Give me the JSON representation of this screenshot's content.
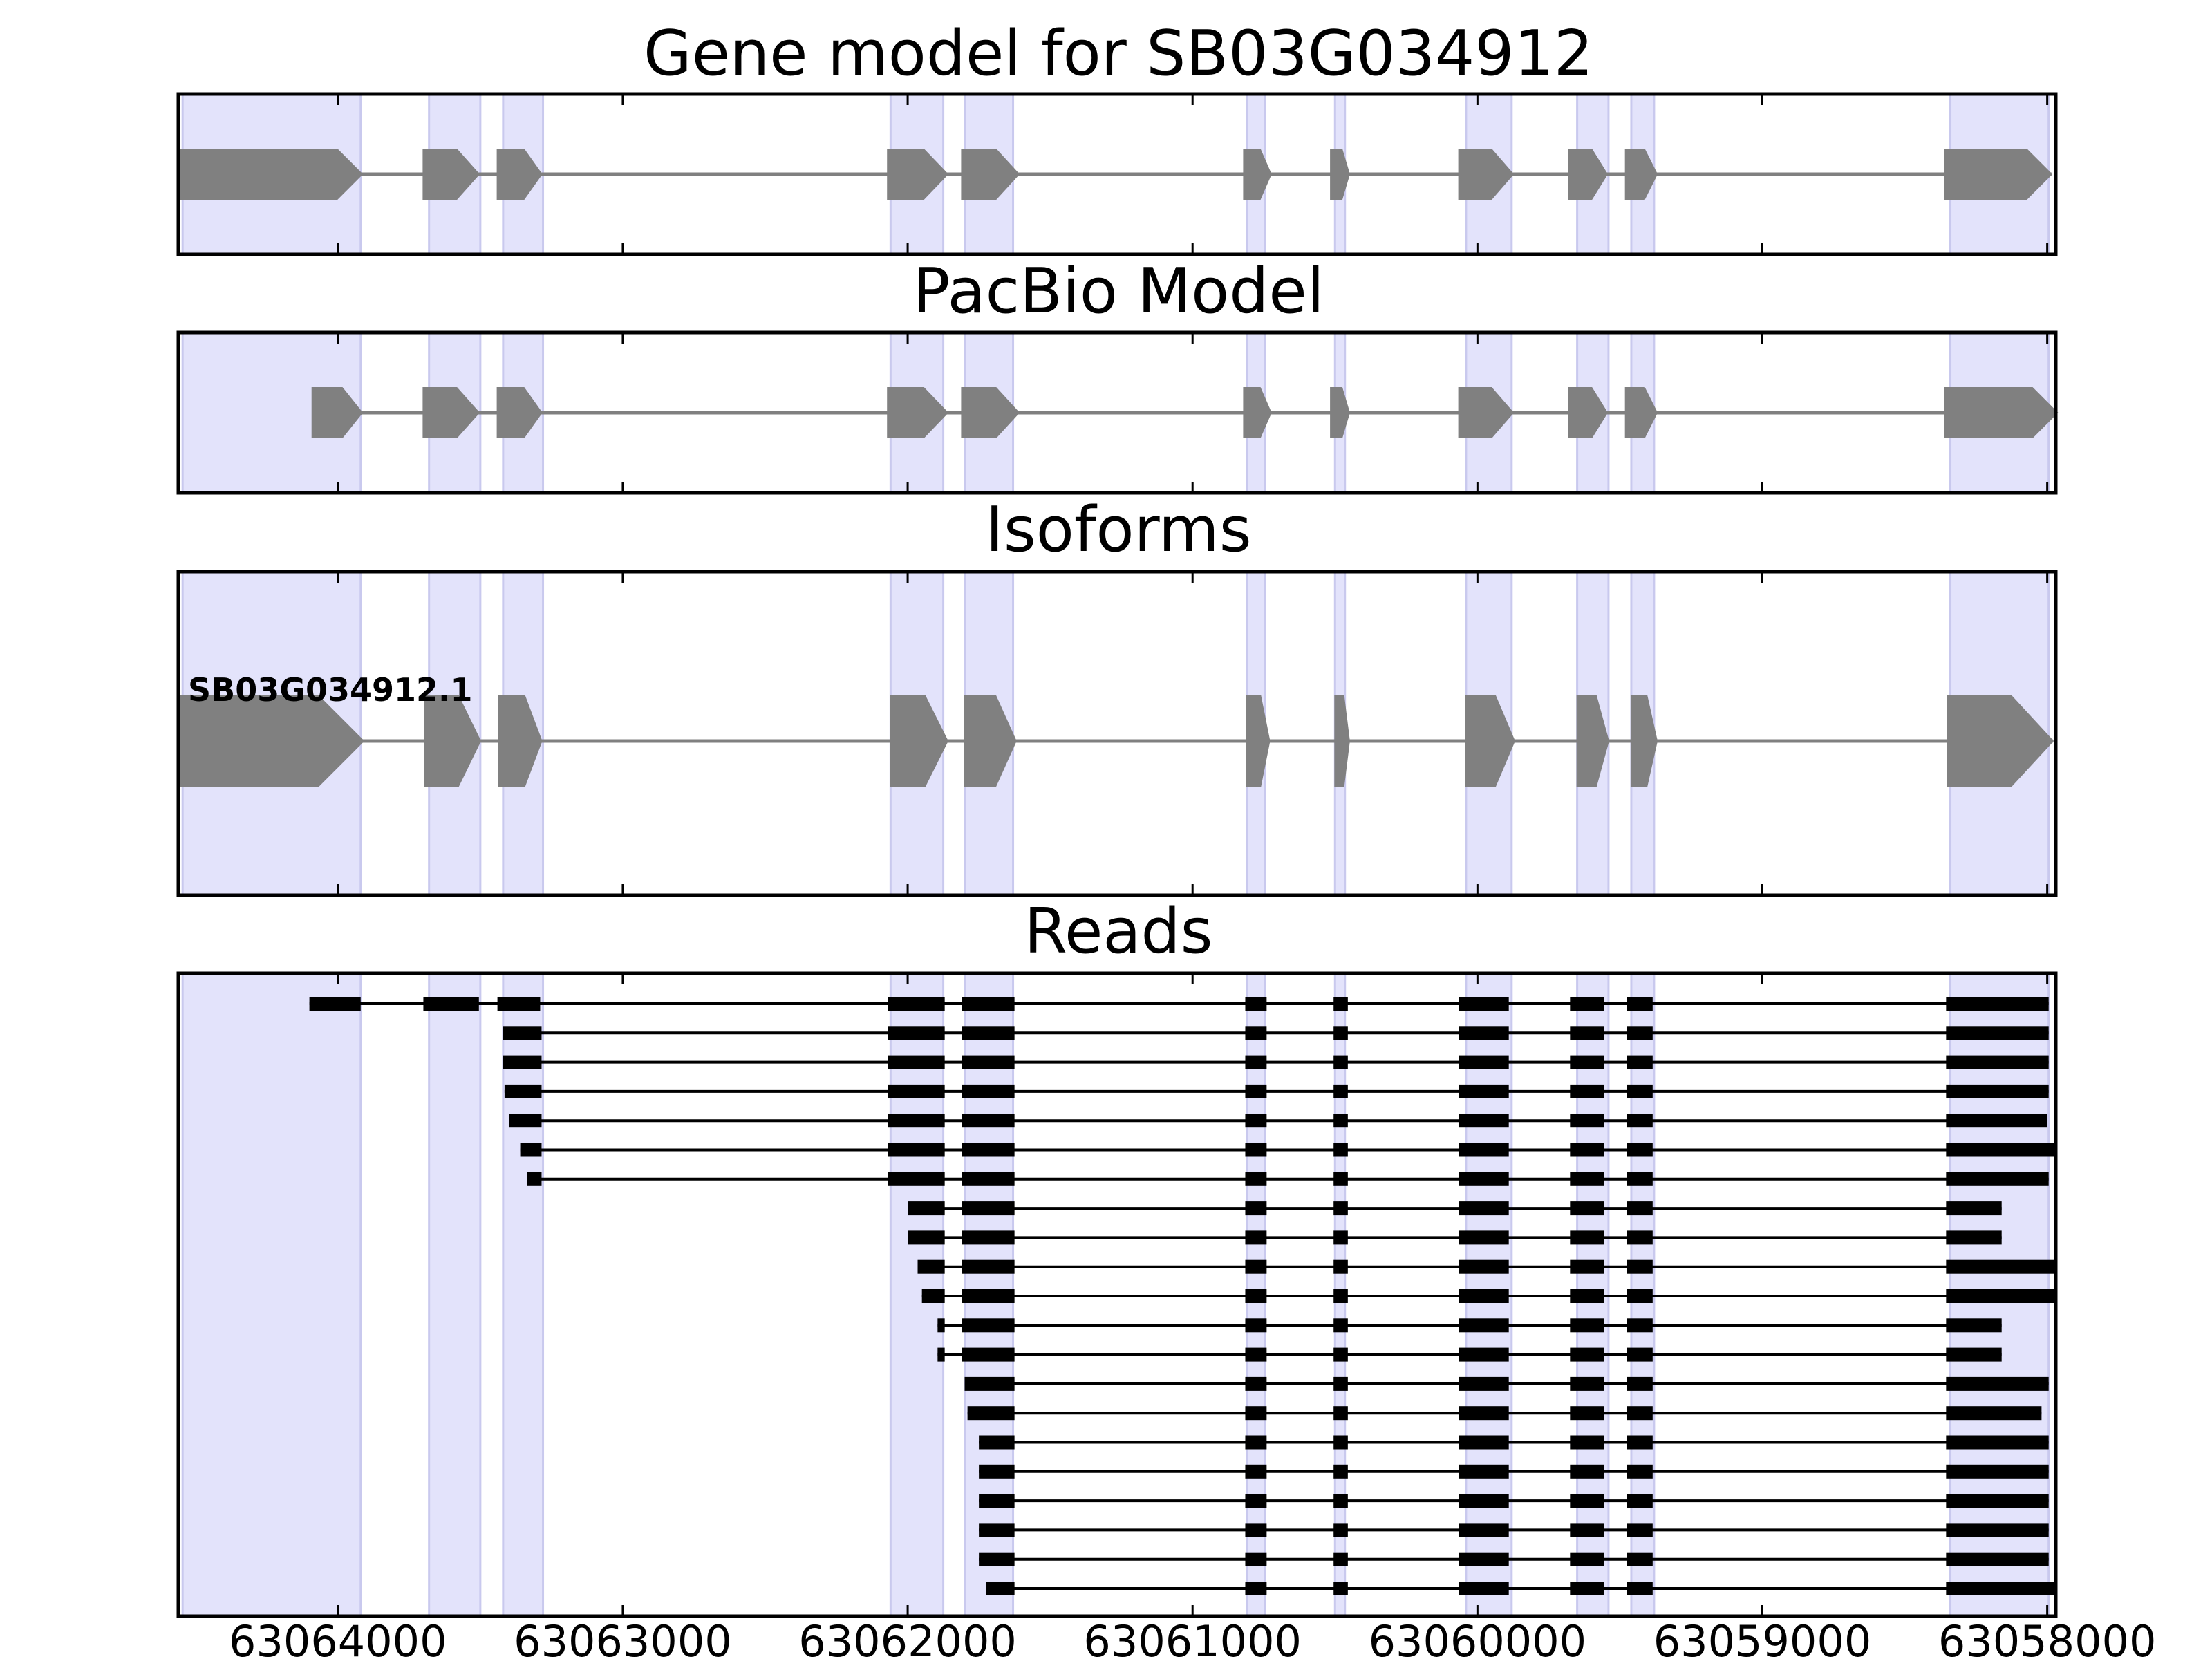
{
  "titles": {
    "gene_model": "Gene model for SB03G034912",
    "pacbio_model": "PacBio Model",
    "isoforms": "Isoforms",
    "reads": "Reads"
  },
  "isoform_label": "SB03G034912.1",
  "colors": {
    "exon_fill": "#808080",
    "intron_line": "#808080",
    "highlight": "#e3e3fb",
    "highlight_edge": "#c9c9ee",
    "read_fill": "#000000",
    "frame": "#000000"
  },
  "chart_data": {
    "type": "gene_model",
    "xlabel": "",
    "ylabel": "",
    "xlim": [
      63064560,
      63057970
    ],
    "x_axis_reversed": true,
    "x_ticks": [
      {
        "value": 63064000,
        "label": "63064000"
      },
      {
        "value": 63063000,
        "label": "63063000"
      },
      {
        "value": 63062000,
        "label": "63062000"
      },
      {
        "value": 63061000,
        "label": "63061000"
      },
      {
        "value": 63060000,
        "label": "63060000"
      },
      {
        "value": 63059000,
        "label": "63059000"
      },
      {
        "value": 63058000,
        "label": "63058000"
      }
    ],
    "highlight_regions": [
      [
        63064545,
        63063920
      ],
      [
        63063680,
        63063500
      ],
      [
        63063420,
        63063280
      ],
      [
        63062060,
        63061875
      ],
      [
        63061800,
        63061630
      ],
      [
        63060810,
        63060745
      ],
      [
        63060500,
        63060465
      ],
      [
        63060040,
        63059880
      ],
      [
        63059650,
        63059540
      ],
      [
        63059460,
        63059380
      ],
      [
        63058340,
        63057995
      ]
    ],
    "gene_model_exons": [
      [
        63064560,
        63063915
      ],
      [
        63063700,
        63063505
      ],
      [
        63063440,
        63063285
      ],
      [
        63062070,
        63061860
      ],
      [
        63061810,
        63061610
      ],
      [
        63060820,
        63060725
      ],
      [
        63060515,
        63060450
      ],
      [
        63060065,
        63059875
      ],
      [
        63059680,
        63059545
      ],
      [
        63059480,
        63059370
      ],
      [
        63058360,
        63057985
      ]
    ],
    "pacbio_model_exons": [
      [
        63064090,
        63063915
      ],
      [
        63063700,
        63063505
      ],
      [
        63063440,
        63063285
      ],
      [
        63062070,
        63061860
      ],
      [
        63061810,
        63061610
      ],
      [
        63060820,
        63060725
      ],
      [
        63060515,
        63060450
      ],
      [
        63060065,
        63059875
      ],
      [
        63059680,
        63059545
      ],
      [
        63059480,
        63059370
      ],
      [
        63058360,
        63057965
      ]
    ],
    "isoforms": [
      {
        "name": "SB03G034912.1",
        "exons": [
          [
            63064560,
            63063910
          ],
          [
            63063695,
            63063500
          ],
          [
            63063435,
            63063285
          ],
          [
            63062060,
            63061860
          ],
          [
            63061800,
            63061620
          ],
          [
            63060810,
            63060730
          ],
          [
            63060500,
            63060450
          ],
          [
            63060040,
            63059870
          ],
          [
            63059650,
            63059540
          ],
          [
            63059460,
            63059370
          ],
          [
            63058350,
            63057980
          ]
        ]
      }
    ],
    "reads": [
      [
        [
          63064100,
          63063920
        ],
        [
          63063700,
          63063505
        ],
        [
          63063440,
          63063290
        ],
        [
          63062070,
          63061870
        ],
        [
          63061810,
          63061625
        ],
        [
          63060815,
          63060740
        ],
        [
          63060505,
          63060455
        ],
        [
          63060065,
          63059890
        ],
        [
          63059675,
          63059555
        ],
        [
          63059475,
          63059385
        ],
        [
          63058355,
          63057995
        ]
      ],
      [
        [
          63063420,
          63063285
        ],
        [
          63062070,
          63061870
        ],
        [
          63061810,
          63061625
        ],
        [
          63060815,
          63060740
        ],
        [
          63060505,
          63060455
        ],
        [
          63060065,
          63059890
        ],
        [
          63059675,
          63059555
        ],
        [
          63059475,
          63059385
        ],
        [
          63058355,
          63057995
        ]
      ],
      [
        [
          63063420,
          63063285
        ],
        [
          63062070,
          63061870
        ],
        [
          63061810,
          63061625
        ],
        [
          63060815,
          63060740
        ],
        [
          63060505,
          63060455
        ],
        [
          63060065,
          63059890
        ],
        [
          63059675,
          63059555
        ],
        [
          63059475,
          63059385
        ],
        [
          63058355,
          63057995
        ]
      ],
      [
        [
          63063415,
          63063285
        ],
        [
          63062070,
          63061870
        ],
        [
          63061810,
          63061625
        ],
        [
          63060815,
          63060740
        ],
        [
          63060505,
          63060455
        ],
        [
          63060065,
          63059890
        ],
        [
          63059675,
          63059555
        ],
        [
          63059475,
          63059385
        ],
        [
          63058355,
          63057995
        ]
      ],
      [
        [
          63063400,
          63063285
        ],
        [
          63062070,
          63061870
        ],
        [
          63061810,
          63061625
        ],
        [
          63060815,
          63060740
        ],
        [
          63060505,
          63060455
        ],
        [
          63060065,
          63059890
        ],
        [
          63059675,
          63059555
        ],
        [
          63059475,
          63059385
        ],
        [
          63058355,
          63058000
        ]
      ],
      [
        [
          63063360,
          63063285
        ],
        [
          63062070,
          63061870
        ],
        [
          63061810,
          63061625
        ],
        [
          63060815,
          63060740
        ],
        [
          63060505,
          63060455
        ],
        [
          63060065,
          63059890
        ],
        [
          63059675,
          63059555
        ],
        [
          63059475,
          63059385
        ],
        [
          63058355,
          63057975
        ]
      ],
      [
        [
          63063335,
          63063285
        ],
        [
          63062070,
          63061870
        ],
        [
          63061810,
          63061625
        ],
        [
          63060815,
          63060740
        ],
        [
          63060505,
          63060455
        ],
        [
          63060065,
          63059890
        ],
        [
          63059675,
          63059555
        ],
        [
          63059475,
          63059385
        ],
        [
          63058355,
          63057995
        ]
      ],
      [
        [
          63062000,
          63061870
        ],
        [
          63061810,
          63061625
        ],
        [
          63060815,
          63060740
        ],
        [
          63060505,
          63060455
        ],
        [
          63060065,
          63059890
        ],
        [
          63059675,
          63059555
        ],
        [
          63059475,
          63059385
        ],
        [
          63058355,
          63058160
        ]
      ],
      [
        [
          63062000,
          63061870
        ],
        [
          63061810,
          63061625
        ],
        [
          63060815,
          63060740
        ],
        [
          63060505,
          63060455
        ],
        [
          63060065,
          63059890
        ],
        [
          63059675,
          63059555
        ],
        [
          63059475,
          63059385
        ],
        [
          63058355,
          63058160
        ]
      ],
      [
        [
          63061965,
          63061870
        ],
        [
          63061810,
          63061625
        ],
        [
          63060815,
          63060740
        ],
        [
          63060505,
          63060455
        ],
        [
          63060065,
          63059890
        ],
        [
          63059675,
          63059555
        ],
        [
          63059475,
          63059385
        ],
        [
          63058355,
          63057975
        ]
      ],
      [
        [
          63061950,
          63061870
        ],
        [
          63061810,
          63061625
        ],
        [
          63060815,
          63060740
        ],
        [
          63060505,
          63060455
        ],
        [
          63060065,
          63059890
        ],
        [
          63059675,
          63059555
        ],
        [
          63059475,
          63059385
        ],
        [
          63058355,
          63057975
        ]
      ],
      [
        [
          63061895,
          63061870
        ],
        [
          63061810,
          63061625
        ],
        [
          63060815,
          63060740
        ],
        [
          63060505,
          63060455
        ],
        [
          63060065,
          63059890
        ],
        [
          63059675,
          63059555
        ],
        [
          63059475,
          63059385
        ],
        [
          63058355,
          63058160
        ]
      ],
      [
        [
          63061895,
          63061870
        ],
        [
          63061810,
          63061625
        ],
        [
          63060815,
          63060740
        ],
        [
          63060505,
          63060455
        ],
        [
          63060065,
          63059890
        ],
        [
          63059675,
          63059555
        ],
        [
          63059475,
          63059385
        ],
        [
          63058355,
          63058160
        ]
      ],
      [
        [
          63061800,
          63061625
        ],
        [
          63060815,
          63060740
        ],
        [
          63060505,
          63060455
        ],
        [
          63060065,
          63059890
        ],
        [
          63059675,
          63059555
        ],
        [
          63059475,
          63059385
        ],
        [
          63058355,
          63057995
        ]
      ],
      [
        [
          63061790,
          63061625
        ],
        [
          63060815,
          63060740
        ],
        [
          63060505,
          63060455
        ],
        [
          63060065,
          63059890
        ],
        [
          63059675,
          63059555
        ],
        [
          63059475,
          63059385
        ],
        [
          63058355,
          63058020
        ]
      ],
      [
        [
          63061750,
          63061625
        ],
        [
          63060815,
          63060740
        ],
        [
          63060505,
          63060455
        ],
        [
          63060065,
          63059890
        ],
        [
          63059675,
          63059555
        ],
        [
          63059475,
          63059385
        ],
        [
          63058355,
          63057995
        ]
      ],
      [
        [
          63061750,
          63061625
        ],
        [
          63060815,
          63060740
        ],
        [
          63060505,
          63060455
        ],
        [
          63060065,
          63059890
        ],
        [
          63059675,
          63059555
        ],
        [
          63059475,
          63059385
        ],
        [
          63058355,
          63057995
        ]
      ],
      [
        [
          63061750,
          63061625
        ],
        [
          63060815,
          63060740
        ],
        [
          63060505,
          63060455
        ],
        [
          63060065,
          63059890
        ],
        [
          63059675,
          63059555
        ],
        [
          63059475,
          63059385
        ],
        [
          63058355,
          63057995
        ]
      ],
      [
        [
          63061750,
          63061625
        ],
        [
          63060815,
          63060740
        ],
        [
          63060505,
          63060455
        ],
        [
          63060065,
          63059890
        ],
        [
          63059675,
          63059555
        ],
        [
          63059475,
          63059385
        ],
        [
          63058355,
          63057995
        ]
      ],
      [
        [
          63061750,
          63061625
        ],
        [
          63060815,
          63060740
        ],
        [
          63060505,
          63060455
        ],
        [
          63060065,
          63059890
        ],
        [
          63059675,
          63059555
        ],
        [
          63059475,
          63059385
        ],
        [
          63058355,
          63057995
        ]
      ],
      [
        [
          63061725,
          63061625
        ],
        [
          63060815,
          63060740
        ],
        [
          63060505,
          63060455
        ],
        [
          63060065,
          63059890
        ],
        [
          63059675,
          63059555
        ],
        [
          63059475,
          63059385
        ],
        [
          63058355,
          63057975
        ]
      ]
    ]
  }
}
